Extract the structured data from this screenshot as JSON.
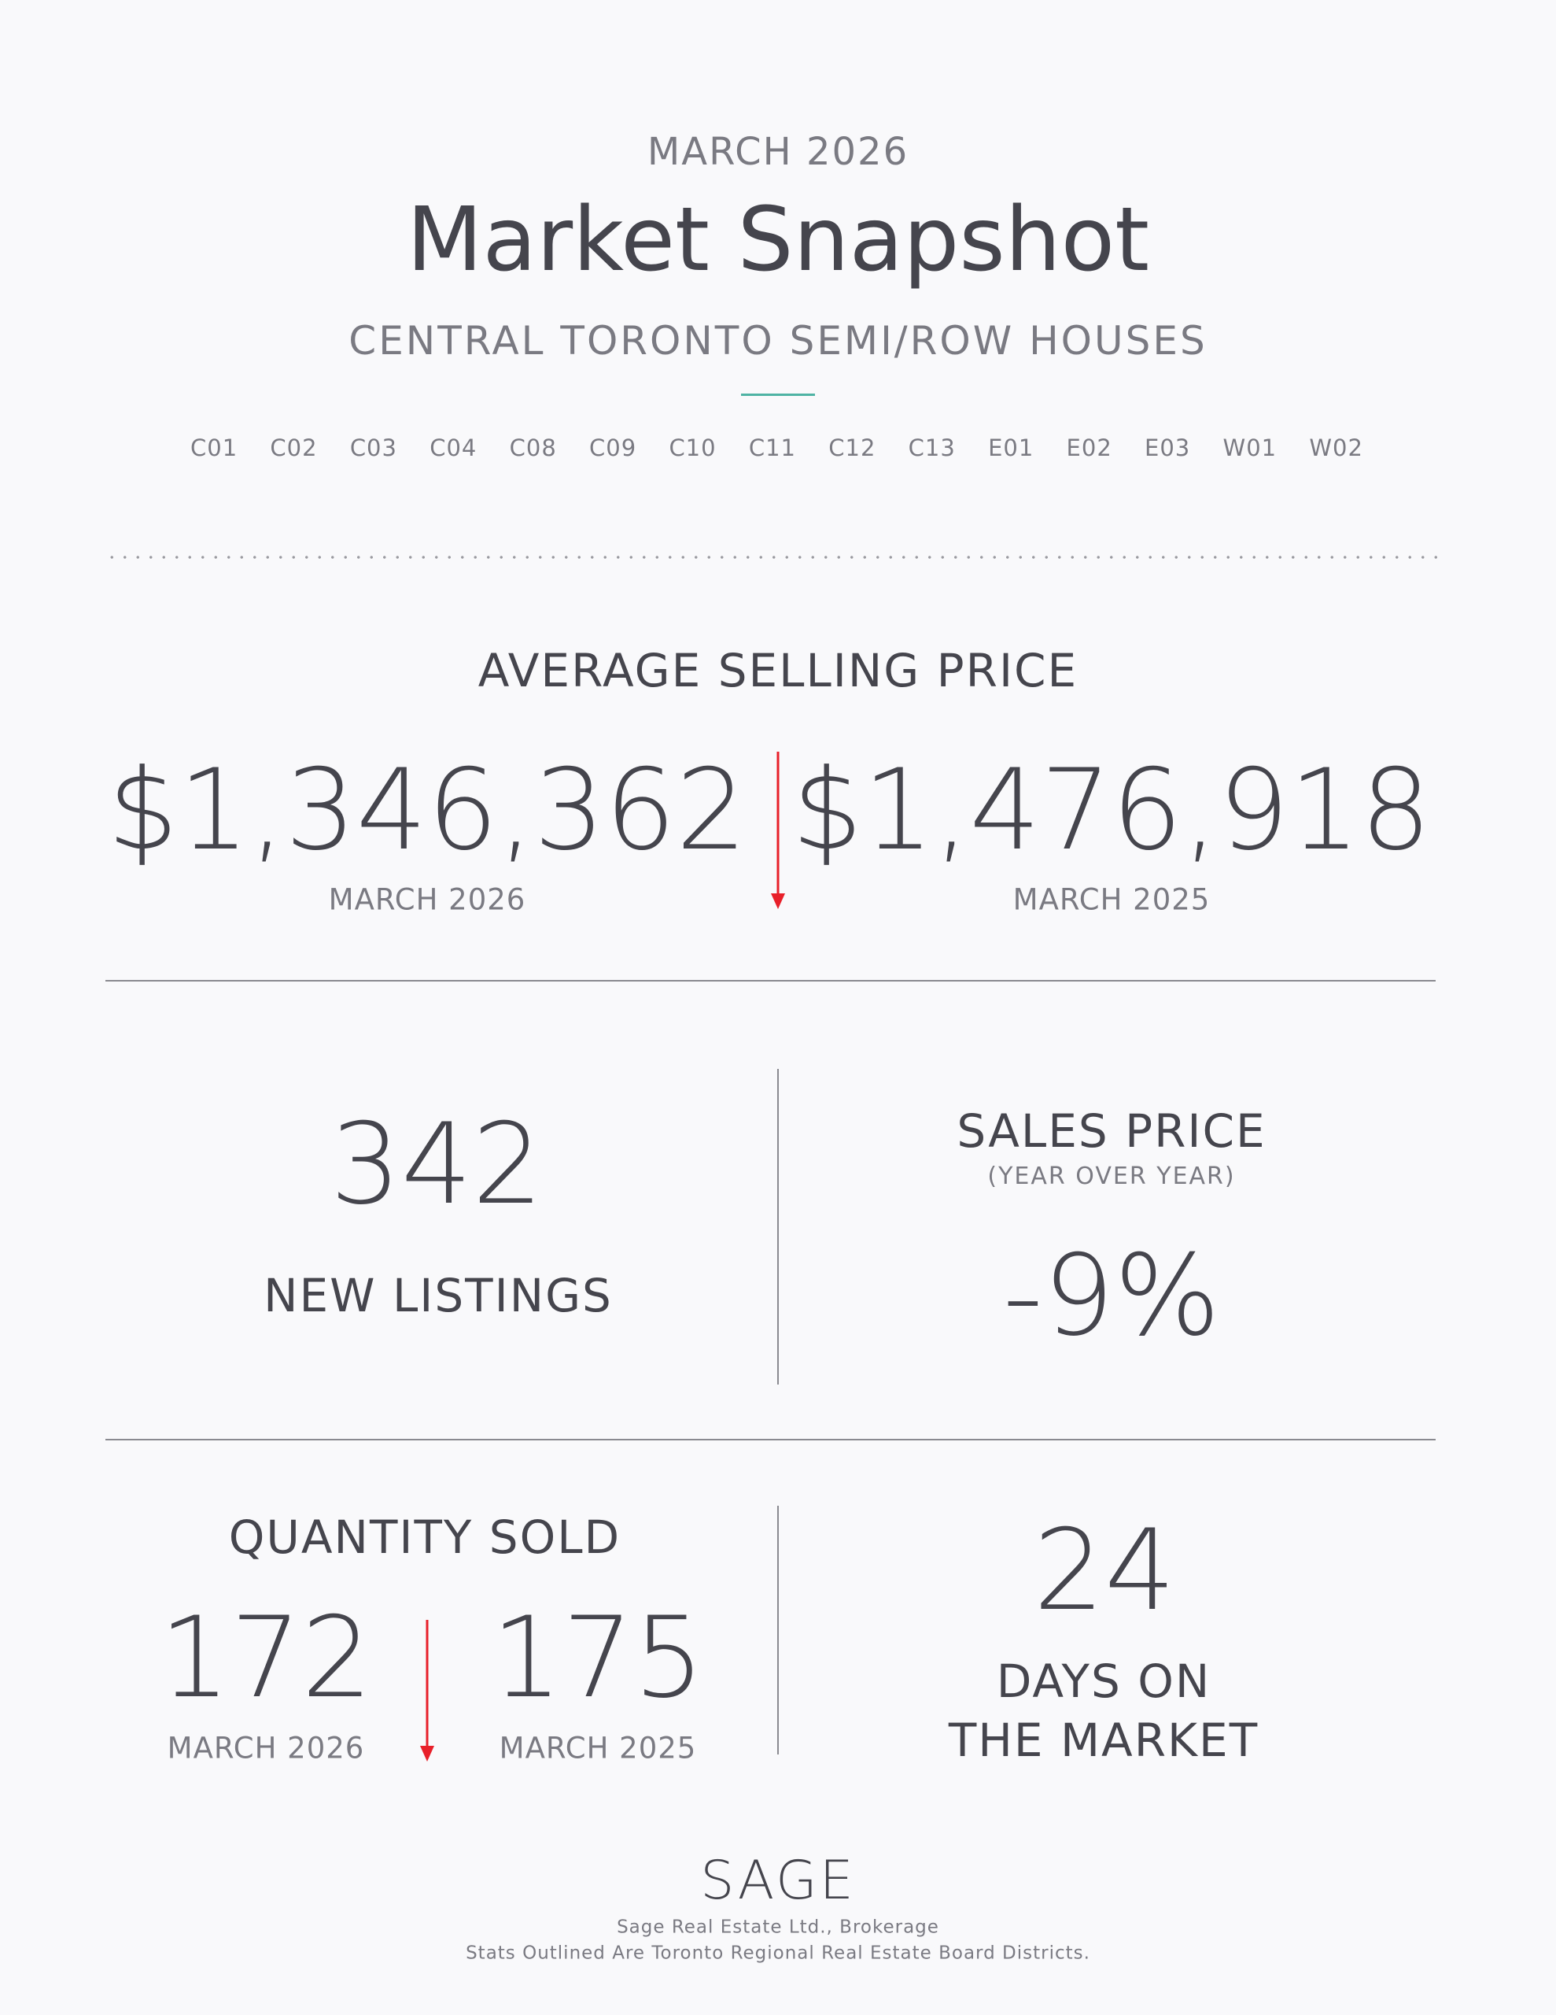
{
  "header": {
    "period": "MARCH 2026",
    "title": "Market Snapshot",
    "subtitle": "CENTRAL TORONTO SEMI/ROW HOUSES",
    "accent_color": "#4fb3a4",
    "districts": [
      "C01",
      "C02",
      "C03",
      "C04",
      "C08",
      "C09",
      "C10",
      "C11",
      "C12",
      "C13",
      "E01",
      "E02",
      "E03",
      "W01",
      "W02"
    ]
  },
  "avg_price": {
    "heading": "AVERAGE SELLING PRICE",
    "current_value": "$1,346,362",
    "current_label": "MARCH 2026",
    "previous_value": "$1,476,918",
    "previous_label": "MARCH 2025",
    "trend": "down",
    "trend_color": "#e8202a"
  },
  "new_listings": {
    "value": "342",
    "label": "NEW LISTINGS"
  },
  "sales_price": {
    "heading": "SALES PRICE",
    "subheading": "(YEAR OVER YEAR)",
    "value": "-9%"
  },
  "quantity_sold": {
    "heading": "QUANTITY SOLD",
    "current_value": "172",
    "current_label": "MARCH 2026",
    "previous_value": "175",
    "previous_label": "MARCH 2025",
    "trend": "down"
  },
  "days_on_market": {
    "value": "24",
    "label_line1": "DAYS ON",
    "label_line2": "THE MARKET"
  },
  "footer": {
    "logo": "SAGE",
    "line1": "Sage Real Estate Ltd., Brokerage",
    "line2": "Stats Outlined Are Toronto Regional Real Estate Board Districts."
  }
}
